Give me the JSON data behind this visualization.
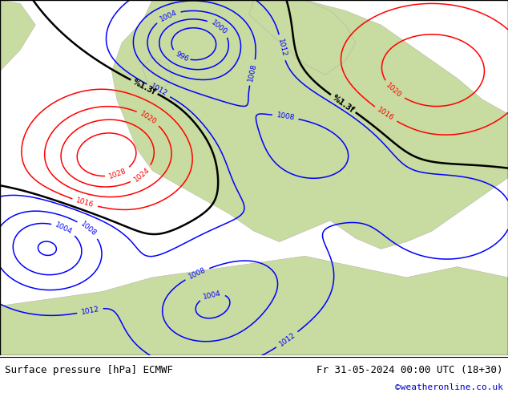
{
  "title_left": "Surface pressure [hPa] ECMWF",
  "title_right": "Fr 31-05-2024 00:00 UTC (18+30)",
  "credit": "©weatheronline.co.uk",
  "ocean_color": "#a8ccd8",
  "land_color": "#c8dba0",
  "footer_bg": "#ffffff",
  "text_color": "#000000",
  "credit_color": "#0000cc",
  "contour_low_color": "#0000ff",
  "contour_high_color": "#ff0000",
  "contour_mid_color": "#000000",
  "figsize": [
    6.34,
    4.9
  ],
  "dpi": 100
}
